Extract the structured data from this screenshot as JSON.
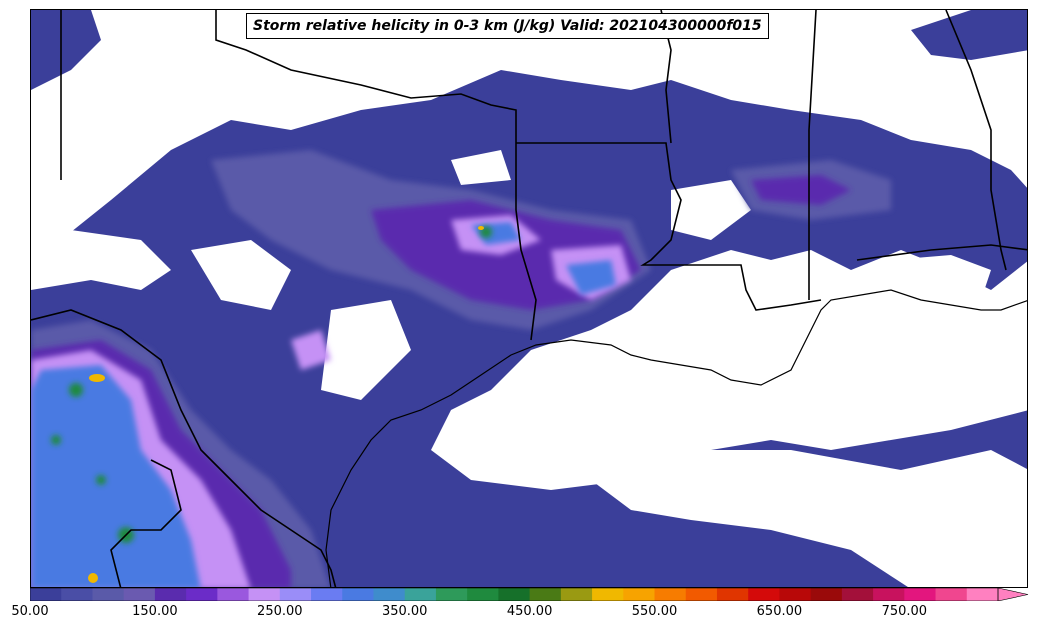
{
  "map": {
    "title": "Storm relative helicity in 0-3 km (J/kg) Valid: 202104300000f015"
  },
  "colorbar": {
    "tick_labels": [
      "50.00",
      "150.00",
      "250.00",
      "350.00",
      "450.00",
      "550.00",
      "650.00",
      "750.00"
    ],
    "levels_start": 50,
    "levels_step": 25,
    "extend": "max",
    "colors": [
      "#3b3f9a",
      "#4a4ea6",
      "#5a5aa9",
      "#6a5ab0",
      "#5a2cae",
      "#6b2cc8",
      "#9a58de",
      "#c591f5",
      "#9a8df8",
      "#6a7cf2",
      "#4a7ae2",
      "#3f8ccc",
      "#3aa39a",
      "#2e9a5a",
      "#1f8a3e",
      "#16702a",
      "#4a7a15",
      "#9a9a12",
      "#f0b800",
      "#f7a300",
      "#f77c00",
      "#f25a00",
      "#e03500",
      "#d40a0a",
      "#b80808",
      "#9a0a0a",
      "#a3103a",
      "#c8125e",
      "#e3167e",
      "#f0468f",
      "#ff80c0"
    ],
    "overflow_color": "#ff80c0"
  }
}
